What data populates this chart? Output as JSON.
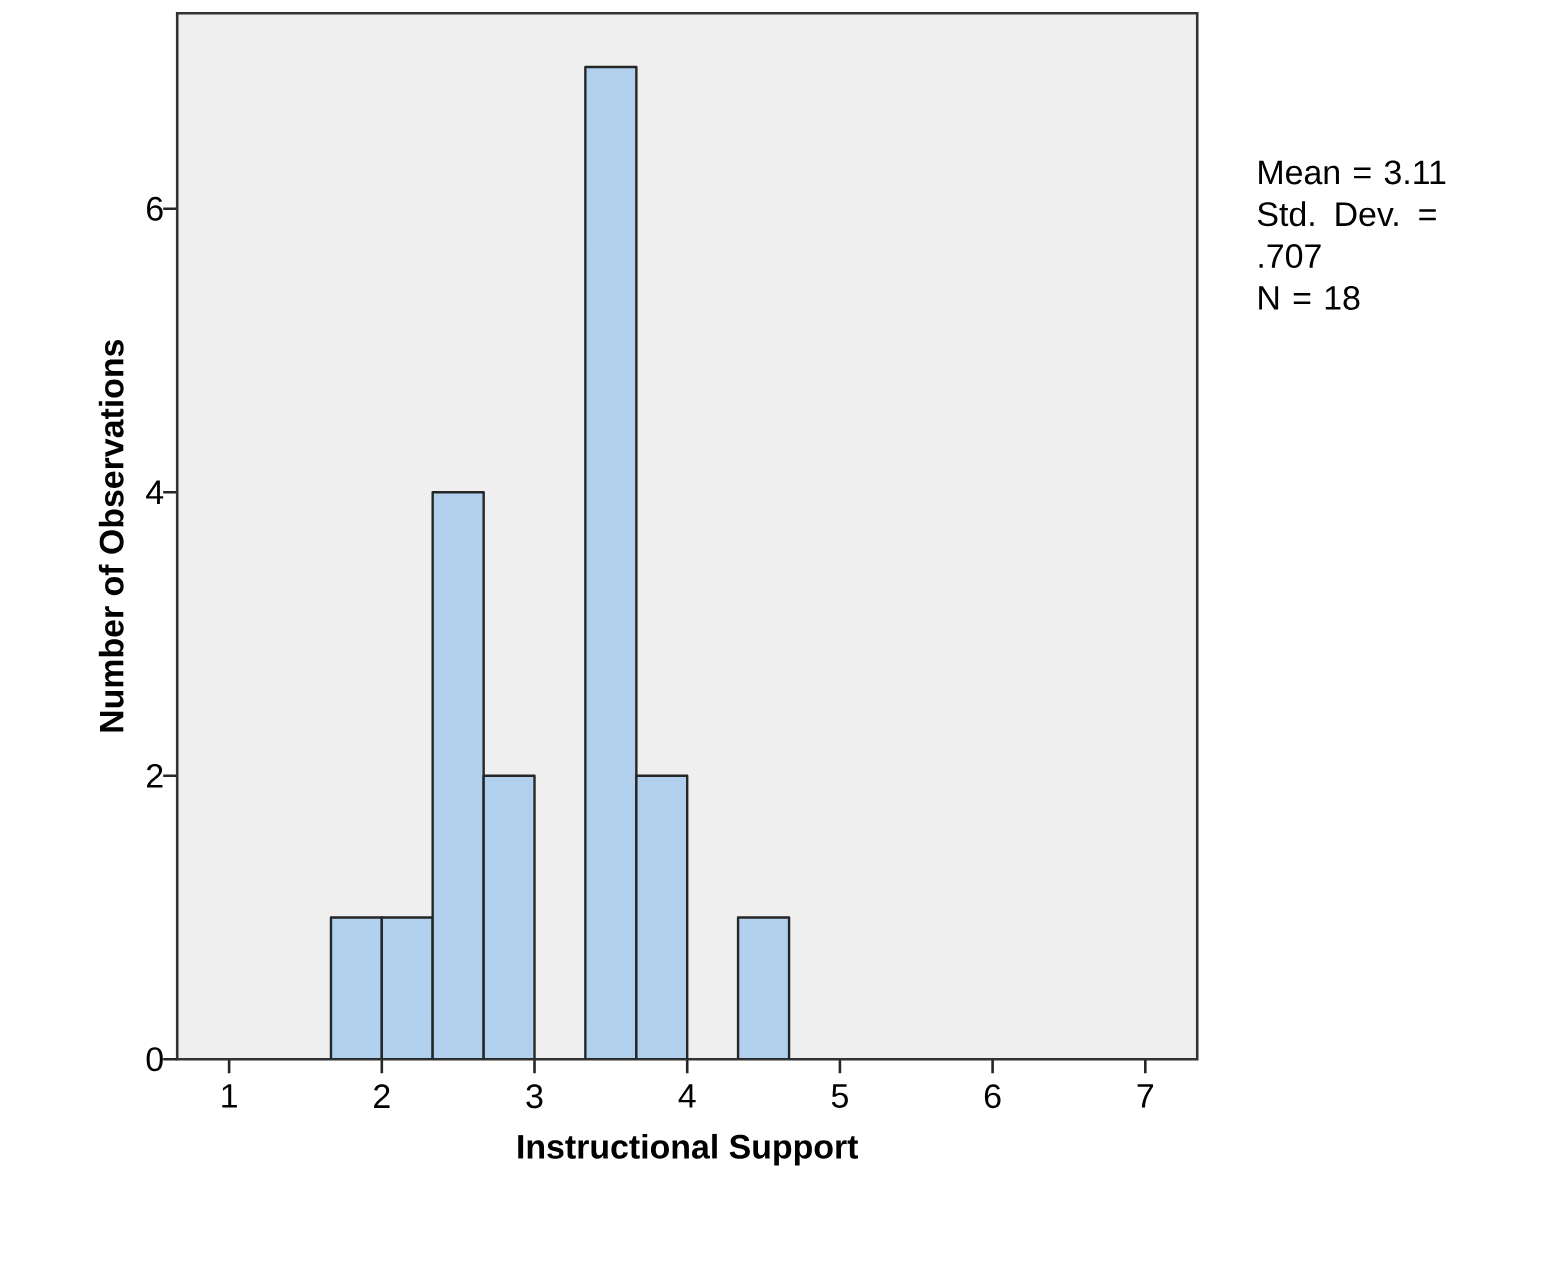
{
  "chart_data": {
    "type": "histogram",
    "xlabel": "Instructional Support",
    "ylabel": "Number of Observations",
    "bins": [
      1.667,
      2.0,
      2.333,
      2.667,
      3.0,
      3.333,
      3.667,
      4.0,
      4.333,
      4.667
    ],
    "values": [
      1,
      1,
      4,
      2,
      0,
      7,
      2,
      0,
      1
    ],
    "color": "#b0d0ee",
    "xlim": [
      0.66,
      7.34
    ],
    "ylim": [
      0,
      7.38
    ],
    "xticks": [
      1,
      2,
      3,
      4,
      5,
      6,
      7
    ],
    "yticks": [
      0,
      2,
      4,
      6
    ],
    "annotations": [
      "Mean = 3.11",
      "Std. Dev. = .707",
      "N = 18"
    ]
  }
}
